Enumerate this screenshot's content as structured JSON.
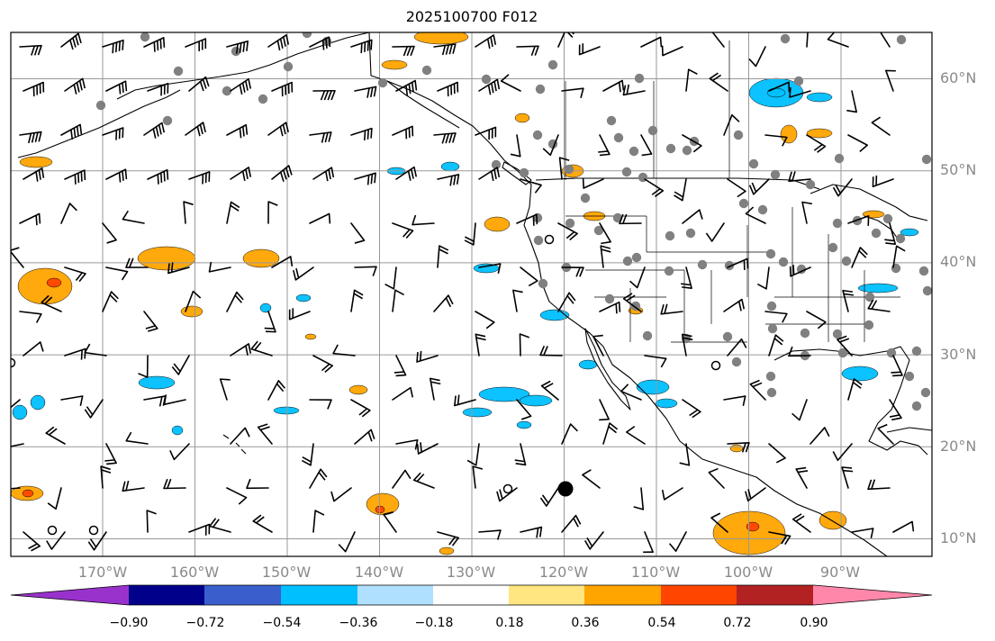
{
  "title": "2025100700 F012",
  "lat_labels": [
    "60°N",
    "50°N",
    "40°N",
    "30°N",
    "20°N",
    "10°N"
  ],
  "lon_labels": [
    "170°W",
    "160°W",
    "150°W",
    "140°W",
    "130°W",
    "120°W",
    "110°W",
    "100°W",
    "90°W"
  ],
  "colorbar": {
    "ticks": [
      "−0.90",
      "−0.72",
      "−0.54",
      "−0.36",
      "−0.18",
      "0.18",
      "0.36",
      "0.54",
      "0.72",
      "0.90"
    ],
    "colors": [
      "#9932cc",
      "#00008b",
      "#3a5fcd",
      "#00bfff",
      "#b0e0ff",
      "#ffffff",
      "#ffe680",
      "#ffa500",
      "#ff4500",
      "#b22222",
      "#ff88aa"
    ]
  },
  "map": {
    "lon_range": [
      -180,
      -80
    ],
    "lat_range": [
      8,
      65
    ],
    "grid_lons": [
      -170,
      -160,
      -150,
      -140,
      -130,
      -120,
      -110,
      -100,
      -90
    ],
    "grid_lats": [
      10,
      20,
      30,
      40,
      50,
      60
    ],
    "colors": {
      "grid": "#999999",
      "coast": "#000000",
      "station": "#808080",
      "warm": "#ffa500",
      "cold": "#00bfff",
      "hot": "#ff4500"
    }
  }
}
